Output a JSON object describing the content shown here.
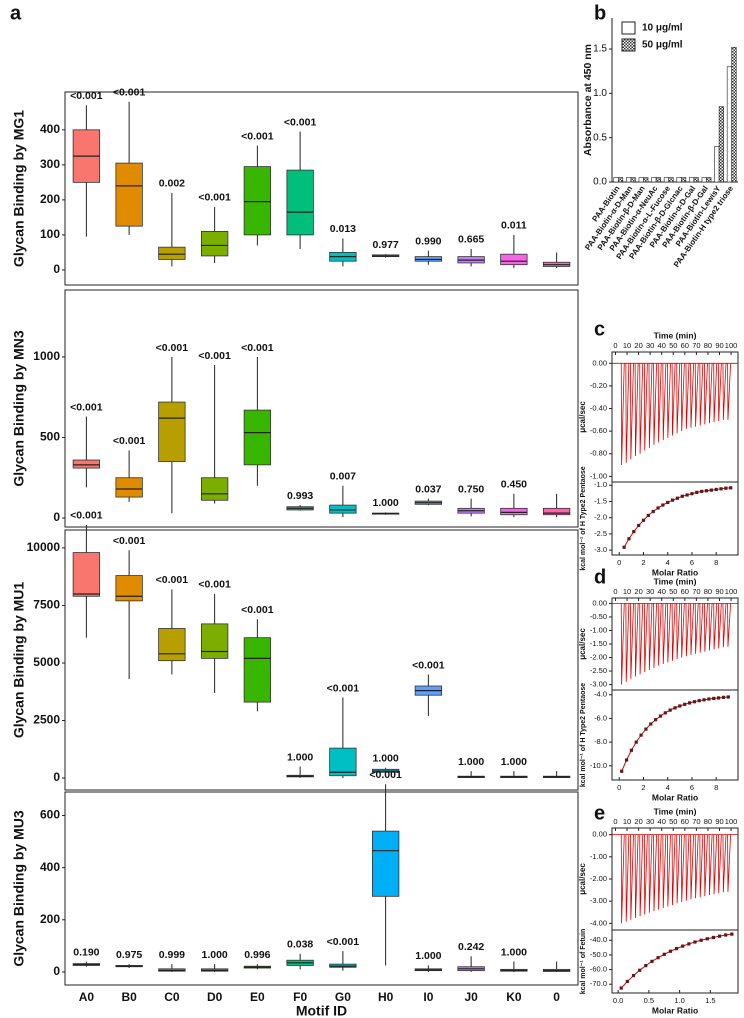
{
  "chart_data": [
    {
      "type": "box",
      "ylabel": "Glycan Binding by MG1",
      "colors": [
        "#f8766d",
        "#e08b00",
        "#b79f00",
        "#7cae00",
        "#39b600",
        "#00bf7d",
        "#00bfc4",
        "#00b0f6",
        "#619cff",
        "#c77cff",
        "#f564e3",
        "#ff64b0"
      ],
      "boxes": {
        "q1": [
          250,
          125,
          30,
          40,
          100,
          100,
          25,
          38,
          25,
          20,
          15,
          10
        ],
        "median": [
          325,
          240,
          45,
          70,
          195,
          165,
          38,
          40,
          30,
          28,
          25,
          15
        ],
        "q3": [
          400,
          305,
          65,
          110,
          295,
          285,
          50,
          43,
          38,
          38,
          45,
          22
        ],
        "whislo": [
          95,
          100,
          10,
          20,
          70,
          60,
          10,
          35,
          15,
          10,
          5,
          5
        ],
        "whishi": [
          470,
          480,
          220,
          180,
          355,
          395,
          90,
          45,
          55,
          60,
          100,
          50
        ]
      },
      "annotations": [
        "<0.001",
        "<0.001",
        "0.002",
        "<0.001",
        "<0.001",
        "<0.001",
        "0.013",
        "0.977",
        "0.990",
        "0.665",
        "0.011",
        null
      ],
      "ylim": [
        -43,
        508
      ],
      "yticks": [
        0,
        100,
        200,
        300,
        400
      ]
    },
    {
      "type": "box",
      "ylabel": "Glycan Binding by MN3",
      "colors": [
        "#f8766d",
        "#e08b00",
        "#b79f00",
        "#7cae00",
        "#39b600",
        "#00bf7d",
        "#00bfc4",
        "#00b0f6",
        "#619cff",
        "#c77cff",
        "#f564e3",
        "#ff64b0"
      ],
      "boxes": {
        "q1": [
          310,
          130,
          350,
          110,
          330,
          50,
          30,
          25,
          85,
          30,
          20,
          20
        ],
        "median": [
          330,
          180,
          620,
          150,
          530,
          60,
          50,
          28,
          95,
          45,
          35,
          30
        ],
        "q3": [
          360,
          250,
          720,
          250,
          670,
          70,
          80,
          30,
          105,
          60,
          60,
          60
        ],
        "whislo": [
          190,
          100,
          30,
          90,
          200,
          45,
          5,
          20,
          80,
          10,
          5,
          5
        ],
        "whishi": [
          630,
          420,
          1000,
          950,
          1000,
          80,
          200,
          35,
          120,
          120,
          150,
          150
        ]
      },
      "annotations": [
        "<0.001",
        "<0.001",
        "<0.001",
        "<0.001",
        "<0.001",
        "0.993",
        "0.007",
        "1.000",
        "0.037",
        "0.750",
        "0.450",
        null
      ],
      "ylim": [
        -56,
        1416
      ],
      "yticks": [
        0,
        500,
        1000
      ]
    },
    {
      "type": "box",
      "ylabel": "Glycan Binding by MU1",
      "colors": [
        "#f8766d",
        "#e08b00",
        "#b79f00",
        "#7cae00",
        "#39b600",
        "#00bf7d",
        "#00bfc4",
        "#00b0f6",
        "#619cff",
        "#c77cff",
        "#f564e3",
        "#ff64b0"
      ],
      "boxes": {
        "q1": [
          7900,
          7700,
          5100,
          5200,
          3300,
          50,
          100,
          250,
          3600,
          20,
          20,
          20
        ],
        "median": [
          8000,
          7900,
          5400,
          5500,
          5200,
          80,
          250,
          300,
          3800,
          50,
          50,
          50
        ],
        "q3": [
          9800,
          8800,
          6500,
          6700,
          6100,
          120,
          1300,
          380,
          4000,
          80,
          80,
          80
        ],
        "whislo": [
          6100,
          4300,
          4500,
          3700,
          2900,
          10,
          0,
          200,
          2700,
          0,
          0,
          0
        ],
        "whishi": [
          11000,
          9900,
          8200,
          8000,
          6900,
          500,
          3500,
          450,
          4500,
          300,
          300,
          300
        ]
      },
      "annotations": [
        "<0.001",
        "<0.001",
        "<0.001",
        "<0.001",
        "<0.001",
        "1.000",
        "<0.001",
        "1.000",
        "<0.001",
        "1.000",
        "1.000",
        null
      ],
      "ylim": [
        -520,
        10780
      ],
      "yticks": [
        0,
        2500,
        5000,
        7500,
        10000
      ]
    },
    {
      "type": "box",
      "ylabel": "Glycan Binding by MU3",
      "xlabel": "Motif ID",
      "categories": [
        "A0",
        "B0",
        "C0",
        "D0",
        "E0",
        "F0",
        "G0",
        "H0",
        "I0",
        "J0",
        "K0",
        "0"
      ],
      "colors": [
        "#f8766d",
        "#e08b00",
        "#b79f00",
        "#7cae00",
        "#39b600",
        "#00bf7d",
        "#00bfc4",
        "#00b0f6",
        "#619cff",
        "#c77cff",
        "#f564e3",
        "#ff64b0"
      ],
      "boxes": {
        "q1": [
          25,
          20,
          3,
          3,
          15,
          25,
          18,
          290,
          5,
          5,
          3,
          2
        ],
        "median": [
          28,
          22,
          6,
          6,
          18,
          35,
          22,
          465,
          8,
          12,
          6,
          5
        ],
        "q3": [
          32,
          25,
          12,
          12,
          22,
          45,
          30,
          540,
          12,
          20,
          10,
          10
        ],
        "whislo": [
          20,
          15,
          0,
          0,
          10,
          10,
          5,
          25,
          0,
          0,
          0,
          0
        ],
        "whishi": [
          40,
          30,
          30,
          30,
          30,
          70,
          80,
          720,
          25,
          60,
          40,
          40
        ]
      },
      "annotations": [
        "0.190",
        "0.975",
        "0.999",
        "1.000",
        "0.996",
        "0.038",
        "<0.001",
        "<0.001",
        "1.000",
        "0.242",
        "1.000",
        null
      ],
      "ylim": [
        -50,
        690
      ],
      "yticks": [
        0,
        200,
        400,
        600
      ]
    },
    {
      "type": "bar",
      "ylabel": "Absorbance at 450 nm",
      "legend": "upper left",
      "categories": [
        "PAA-Biotin",
        "PAA-Biotin-α-D-Man",
        "PAA-Biotin-β-D-Man",
        "PAA-Biotin-α-NeuAc",
        "PAA-Biotin-α-L-Fucose",
        "PAA-Biotin-β-D-Glcnac",
        "PAA-Biotin-α-D-Gal",
        "PAA-Biotin-β-D-Gal",
        "PAA-Biotin-LewisY",
        "PAA-Biotin-H type2 triose"
      ],
      "series": [
        {
          "name": "10 μg/ml",
          "color": "#ffffff",
          "values": [
            0.05,
            0.05,
            0.05,
            0.05,
            0.05,
            0.05,
            0.05,
            0.05,
            0.4,
            1.3
          ]
        },
        {
          "name": "50 μg/ml",
          "color": "#333333",
          "pattern": "checker",
          "values": [
            0.05,
            0.05,
            0.05,
            0.05,
            0.05,
            0.05,
            0.05,
            0.05,
            0.85,
            1.52
          ]
        }
      ],
      "ylim": [
        0,
        1.85
      ],
      "yticks": [
        {
          "value": 0,
          "label": "0.0"
        },
        0.5,
        {
          "value": 1,
          "label": "1.0"
        },
        1.5
      ]
    },
    {
      "type": "spike",
      "xlabel": "Time (min)",
      "ylabel": "μcal/sec",
      "color": "#e00000",
      "x": [
        5,
        9,
        13,
        17,
        21,
        25,
        29,
        33,
        37,
        41,
        45,
        49,
        53,
        57,
        61,
        65,
        69,
        73,
        77,
        81,
        85,
        89,
        93,
        97
      ],
      "values": [
        -0.9,
        -0.88,
        -0.85,
        -0.82,
        -0.8,
        -0.77,
        -0.75,
        -0.72,
        -0.7,
        -0.68,
        -0.66,
        -0.64,
        -0.62,
        -0.6,
        -0.58,
        -0.57,
        -0.56,
        -0.55,
        -0.54,
        -0.53,
        -0.52,
        -0.51,
        -0.5,
        -0.5
      ],
      "xlim": [
        -3,
        106
      ],
      "xticks": [
        0,
        10,
        20,
        30,
        40,
        50,
        60,
        70,
        80,
        90,
        100
      ],
      "ylim": [
        -1.05,
        0.1
      ],
      "yticks": [
        {
          "value": 0,
          "label": "0.00"
        },
        {
          "value": -0.2,
          "label": "-0.20"
        },
        {
          "value": -0.4,
          "label": "-0.40"
        },
        {
          "value": -0.6,
          "label": "-0.60"
        },
        {
          "value": -0.8,
          "label": "-0.80"
        },
        {
          "value": -1,
          "label": "-1.00"
        }
      ]
    },
    {
      "type": "scatter",
      "xlabel": "Molar Ratio",
      "ylabel": "kcal mol⁻¹ of H Type2 Pentaose",
      "color": "#5a1a1a",
      "fit_color": "#e00000",
      "x": [
        0.4,
        0.8,
        1.2,
        1.6,
        2.0,
        2.4,
        2.8,
        3.2,
        3.6,
        4.0,
        4.4,
        4.8,
        5.2,
        5.6,
        6.0,
        6.4,
        6.8,
        7.2,
        7.6,
        8.0,
        8.4,
        8.8,
        9.2
      ],
      "values": [
        -2.91,
        -2.65,
        -2.43,
        -2.24,
        -2.08,
        -1.93,
        -1.81,
        -1.7,
        -1.61,
        -1.53,
        -1.46,
        -1.4,
        -1.34,
        -1.3,
        -1.26,
        -1.22,
        -1.19,
        -1.17,
        -1.15,
        -1.13,
        -1.11,
        -1.09,
        -1.08
      ],
      "xlim": [
        -0.6,
        9.8
      ],
      "xticks": [
        0,
        2,
        4,
        6,
        8
      ],
      "ylim": [
        -3.15,
        -0.9
      ],
      "yticks": [
        {
          "value": -1,
          "label": "-1.0"
        },
        -1.5,
        {
          "value": -2,
          "label": "-2.0"
        },
        -2.5,
        {
          "value": -3,
          "label": "-3.0"
        }
      ]
    },
    {
      "type": "spike",
      "xlabel": "Time (min)",
      "ylabel": "μcal/sec",
      "color": "#e00000",
      "x": [
        5,
        9,
        13,
        17,
        21,
        25,
        29,
        33,
        37,
        41,
        45,
        49,
        53,
        57,
        61,
        65,
        69,
        73,
        77,
        81,
        85,
        89,
        93,
        97
      ],
      "values": [
        -3.0,
        -2.9,
        -2.8,
        -2.7,
        -2.62,
        -2.54,
        -2.46,
        -2.38,
        -2.3,
        -2.24,
        -2.18,
        -2.12,
        -2.06,
        -2.0,
        -1.95,
        -1.9,
        -1.86,
        -1.82,
        -1.78,
        -1.74,
        -1.7,
        -1.66,
        -1.62,
        -1.6
      ],
      "xlim": [
        -3,
        106
      ],
      "xticks": [
        0,
        10,
        20,
        30,
        40,
        50,
        60,
        70,
        80,
        90,
        100
      ],
      "ylim": [
        -3.2,
        0.2
      ],
      "yticks": [
        {
          "value": 0,
          "label": "0.00"
        },
        {
          "value": -0.5,
          "label": "-0.50"
        },
        {
          "value": -1,
          "label": "-1.00"
        },
        {
          "value": -1.5,
          "label": "-1.50"
        },
        {
          "value": -2,
          "label": "-2.00"
        },
        {
          "value": -2.5,
          "label": "-2.50"
        },
        {
          "value": -3,
          "label": "-3.00"
        }
      ]
    },
    {
      "type": "scatter",
      "xlabel": "Molar Ratio",
      "ylabel": "kcal mol⁻¹ of H Type2 Pentaose",
      "color": "#5a1a1a",
      "fit_color": "#e00000",
      "x": [
        0.2,
        0.6,
        1.0,
        1.4,
        1.8,
        2.2,
        2.6,
        3.0,
        3.4,
        3.8,
        4.2,
        4.6,
        5.0,
        5.4,
        5.8,
        6.2,
        6.6,
        7.0,
        7.4,
        7.8,
        8.2,
        8.6,
        9.0
      ],
      "values": [
        -10.46,
        -9.51,
        -8.69,
        -8.0,
        -7.41,
        -6.9,
        -6.47,
        -6.11,
        -5.8,
        -5.53,
        -5.3,
        -5.11,
        -4.95,
        -4.81,
        -4.69,
        -4.59,
        -4.5,
        -4.43,
        -4.36,
        -4.31,
        -4.27,
        -4.22,
        -4.19
      ],
      "xlim": [
        -0.6,
        9.8
      ],
      "xticks": [
        0,
        2,
        4,
        6,
        8
      ],
      "ylim": [
        -11.2,
        -3.6
      ],
      "yticks": [
        {
          "value": -4,
          "label": "-4.0"
        },
        {
          "value": -6,
          "label": "-6.0"
        },
        {
          "value": -8,
          "label": "-8.0"
        },
        {
          "value": -10,
          "label": "-10.0"
        }
      ]
    },
    {
      "type": "spike",
      "xlabel": "Time (min)",
      "ylabel": "μcal/sec",
      "color": "#e00000",
      "x": [
        5,
        9,
        13,
        17,
        21,
        25,
        29,
        33,
        37,
        41,
        45,
        49,
        53,
        57,
        61,
        65,
        69,
        73,
        77,
        81,
        85,
        89,
        93,
        97
      ],
      "values": [
        -4.0,
        -3.92,
        -3.84,
        -3.76,
        -3.68,
        -3.6,
        -3.52,
        -3.45,
        -3.38,
        -3.31,
        -3.24,
        -3.17,
        -3.1,
        -3.04,
        -2.98,
        -2.92,
        -2.87,
        -2.82,
        -2.77,
        -2.72,
        -2.68,
        -2.64,
        -2.6,
        -2.58
      ],
      "xlim": [
        -3,
        106
      ],
      "xticks": [
        0,
        10,
        20,
        30,
        40,
        50,
        60,
        70,
        80,
        90,
        100
      ],
      "ylim": [
        -4.3,
        0.3
      ],
      "yticks": [
        {
          "value": 0,
          "label": "0.00"
        },
        {
          "value": -1,
          "label": "-1.00"
        },
        {
          "value": -2,
          "label": "-2.00"
        },
        {
          "value": -3,
          "label": "-3.00"
        },
        {
          "value": -4,
          "label": "-4.00"
        }
      ]
    },
    {
      "type": "scatter",
      "xlabel": "Molar Ratio",
      "ylabel": "kcal mol⁻¹ of Fetuin",
      "color": "#5a1a1a",
      "fit_color": "#e00000",
      "x": [
        0.05,
        0.15,
        0.25,
        0.35,
        0.45,
        0.55,
        0.65,
        0.75,
        0.85,
        0.95,
        1.05,
        1.15,
        1.25,
        1.35,
        1.45,
        1.55,
        1.65,
        1.75,
        1.85
      ],
      "values": [
        -72.6,
        -68.1,
        -64.1,
        -60.5,
        -57.3,
        -54.4,
        -51.9,
        -49.6,
        -47.5,
        -45.7,
        -44.0,
        -42.5,
        -41.2,
        -40.0,
        -39.0,
        -38.1,
        -37.2,
        -36.4,
        -35.8
      ],
      "xlim": [
        -0.1,
        1.95
      ],
      "xticks": [
        {
          "value": 0,
          "label": "0.0"
        },
        0.5,
        {
          "value": 1,
          "label": "1.0"
        },
        1.5
      ],
      "ylim": [
        -76,
        -33
      ],
      "yticks": [
        {
          "value": -40,
          "label": "-40.0"
        },
        {
          "value": -50,
          "label": "-50.0"
        },
        {
          "value": -60,
          "label": "-60.0"
        },
        {
          "value": -70,
          "label": "-70.0"
        }
      ]
    }
  ],
  "panels": [
    "a",
    "b",
    "c",
    "d",
    "e"
  ]
}
